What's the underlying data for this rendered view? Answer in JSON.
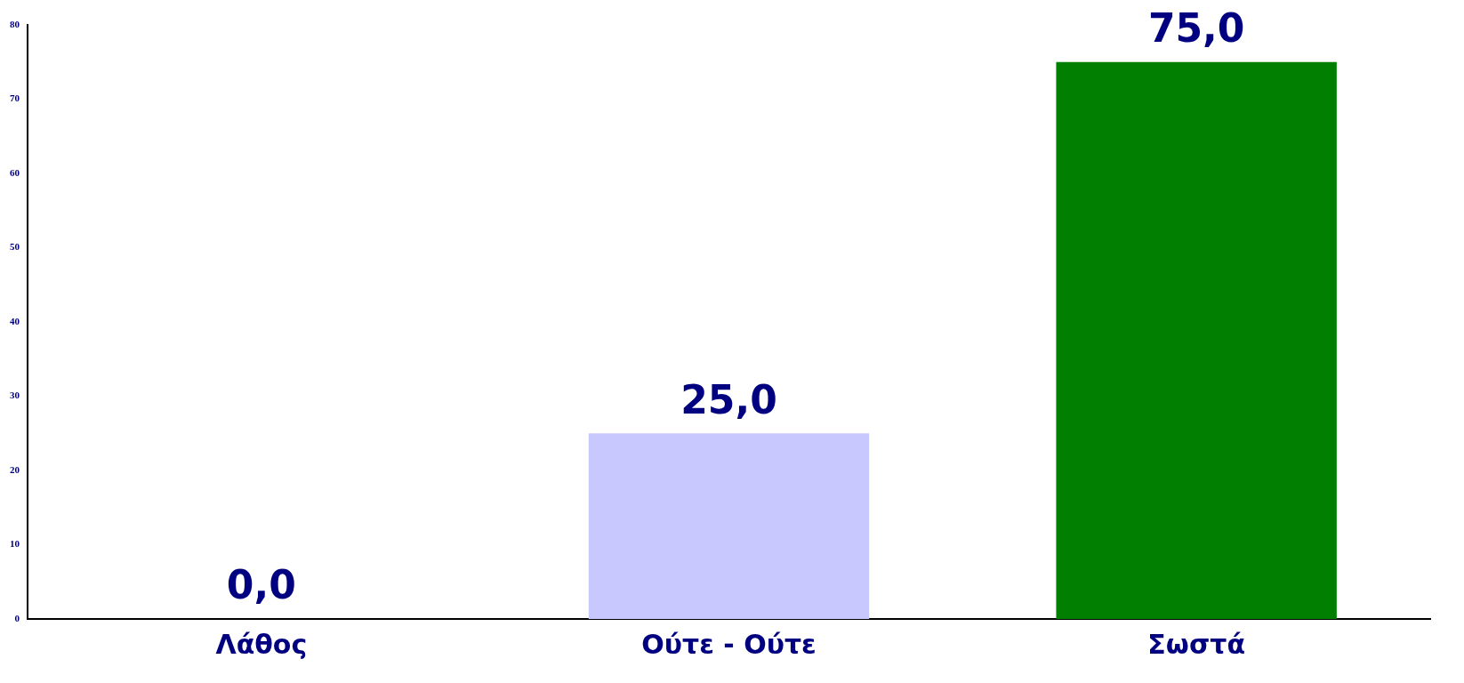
{
  "chart_data": {
    "type": "bar",
    "categories": [
      "Λάθος",
      "Ούτε - Ούτε",
      "Σωστά"
    ],
    "values": [
      0,
      25,
      75
    ],
    "value_labels": [
      "0,0",
      "25,0",
      "75,0"
    ],
    "colors": [
      "#bb0000",
      "#c8c8ff",
      "#007f00"
    ],
    "ylim": [
      0,
      80
    ],
    "yticks": [
      0,
      10,
      20,
      30,
      40,
      50,
      60,
      70,
      80
    ],
    "grid": false,
    "legend": false
  }
}
